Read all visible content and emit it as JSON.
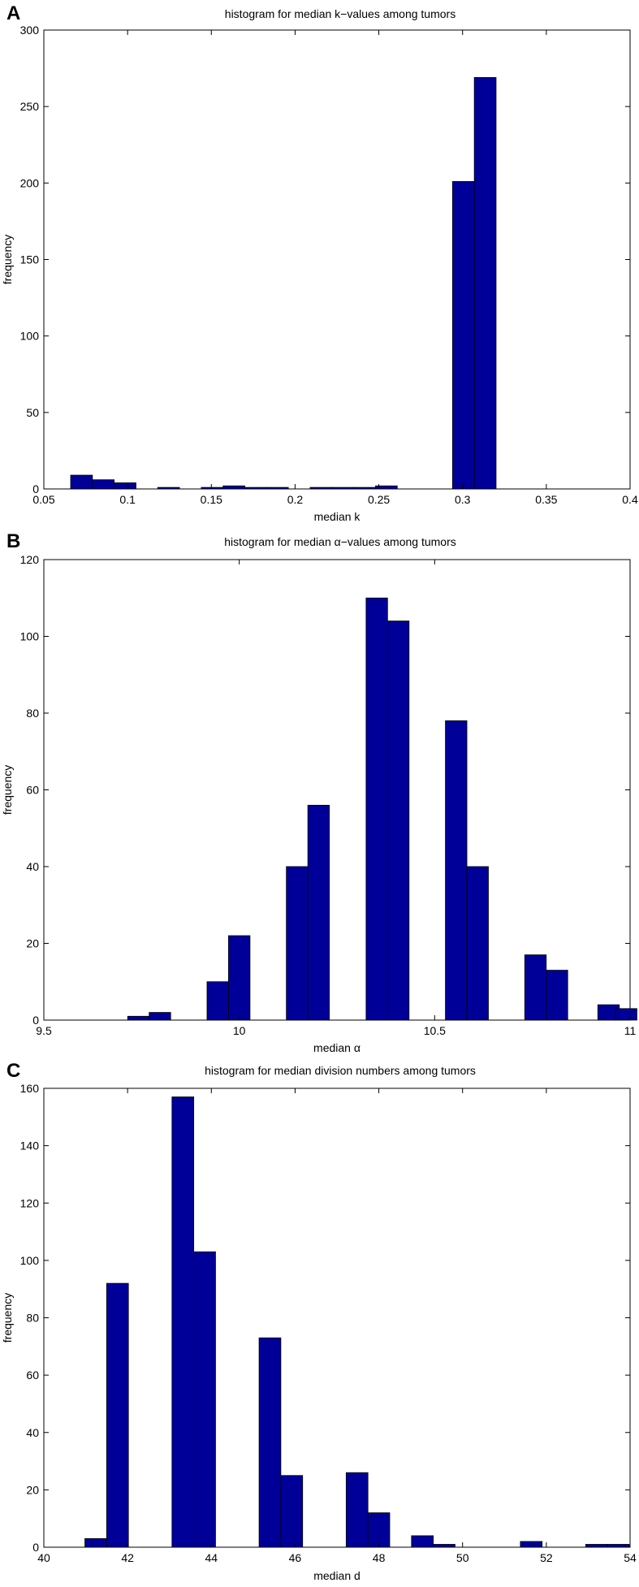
{
  "bar_color": "#000099",
  "chart_data": [
    {
      "type": "bar",
      "panel": "A",
      "title": "histogram for median k−values among tumors",
      "xlabel": "median k",
      "ylabel": "frequency",
      "xlim": [
        0.05,
        0.4
      ],
      "ylim": [
        0,
        300
      ],
      "x_ticks": [
        0.05,
        0.1,
        0.15,
        0.2,
        0.25,
        0.3,
        0.35,
        0.4
      ],
      "x_tick_labels": [
        "0.05",
        "0.1",
        "0.15",
        "0.2",
        "0.25",
        "0.3",
        "0.35",
        "0.4"
      ],
      "y_ticks": [
        0,
        50,
        100,
        150,
        200,
        250,
        300
      ],
      "y_tick_labels": [
        "0",
        "50",
        "100",
        "150",
        "200",
        "250",
        "300"
      ],
      "bin_width": 0.013,
      "bins": [
        {
          "x": 0.0725,
          "value": 9
        },
        {
          "x": 0.0855,
          "value": 6
        },
        {
          "x": 0.0985,
          "value": 4
        },
        {
          "x": 0.1245,
          "value": 1
        },
        {
          "x": 0.1505,
          "value": 1
        },
        {
          "x": 0.1635,
          "value": 2
        },
        {
          "x": 0.1765,
          "value": 1
        },
        {
          "x": 0.1895,
          "value": 1
        },
        {
          "x": 0.2155,
          "value": 1
        },
        {
          "x": 0.2285,
          "value": 1
        },
        {
          "x": 0.2415,
          "value": 1
        },
        {
          "x": 0.2545,
          "value": 2
        },
        {
          "x": 0.3005,
          "value": 201
        },
        {
          "x": 0.3135,
          "value": 269
        }
      ]
    },
    {
      "type": "bar",
      "panel": "B",
      "title": "histogram for median α−values among tumors",
      "xlabel": "median α",
      "ylabel": "frequency",
      "xlim": [
        9.5,
        11
      ],
      "ylim": [
        0,
        120
      ],
      "x_ticks": [
        9.5,
        10,
        10.5,
        11
      ],
      "x_tick_labels": [
        "9.5",
        "10",
        "10.5",
        "11"
      ],
      "y_ticks": [
        0,
        20,
        40,
        60,
        80,
        100,
        120
      ],
      "y_tick_labels": [
        "0",
        "20",
        "40",
        "60",
        "80",
        "100",
        "120"
      ],
      "bin_width": 0.055,
      "bins": [
        {
          "x": 9.742,
          "value": 1
        },
        {
          "x": 9.797,
          "value": 2
        },
        {
          "x": 9.945,
          "value": 10
        },
        {
          "x": 10.0,
          "value": 22
        },
        {
          "x": 10.148,
          "value": 40
        },
        {
          "x": 10.203,
          "value": 56
        },
        {
          "x": 10.352,
          "value": 110
        },
        {
          "x": 10.407,
          "value": 104
        },
        {
          "x": 10.555,
          "value": 78
        },
        {
          "x": 10.61,
          "value": 40
        },
        {
          "x": 10.758,
          "value": 17
        },
        {
          "x": 10.813,
          "value": 13
        },
        {
          "x": 10.945,
          "value": 4
        },
        {
          "x": 10.99,
          "value": 3
        }
      ]
    },
    {
      "type": "bar",
      "panel": "C",
      "title": "histogram for median division numbers among tumors",
      "xlabel": "median d",
      "ylabel": "frequency",
      "xlim": [
        40,
        54
      ],
      "ylim": [
        0,
        160
      ],
      "x_ticks": [
        40,
        42,
        44,
        46,
        48,
        50,
        52,
        54
      ],
      "x_tick_labels": [
        "40",
        "42",
        "44",
        "46",
        "48",
        "50",
        "52",
        "54"
      ],
      "y_ticks": [
        0,
        20,
        40,
        60,
        80,
        100,
        120,
        140,
        160
      ],
      "y_tick_labels": [
        "0",
        "20",
        "40",
        "60",
        "80",
        "100",
        "120",
        "140",
        "160"
      ],
      "bin_width": 0.52,
      "bins": [
        {
          "x": 41.24,
          "value": 3
        },
        {
          "x": 41.76,
          "value": 92
        },
        {
          "x": 43.32,
          "value": 157
        },
        {
          "x": 43.84,
          "value": 103
        },
        {
          "x": 45.4,
          "value": 73
        },
        {
          "x": 45.92,
          "value": 25
        },
        {
          "x": 47.48,
          "value": 26
        },
        {
          "x": 48.0,
          "value": 12
        },
        {
          "x": 49.04,
          "value": 4
        },
        {
          "x": 49.56,
          "value": 1
        },
        {
          "x": 51.64,
          "value": 2
        },
        {
          "x": 53.2,
          "value": 1
        },
        {
          "x": 53.72,
          "value": 1
        }
      ]
    }
  ]
}
